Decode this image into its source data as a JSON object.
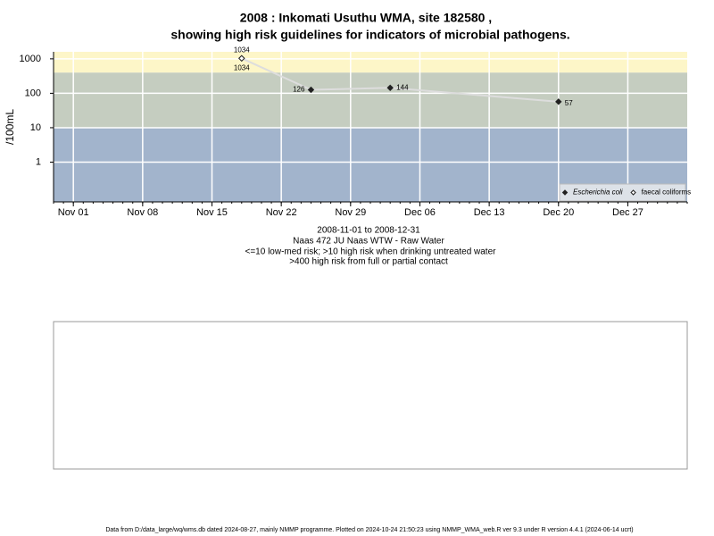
{
  "chart_data": {
    "type": "line",
    "title": [
      "2008 : Inkomati Usuthu WMA, site 182580 ,",
      "showing high risk guidelines for indicators of microbial pathogens."
    ],
    "subtitle": [
      "2008-11-01 to 2008-12-31",
      "Naas 472 JU Naas WTW - Raw Water",
      "<=10 low-med risk; >10 high risk when drinking untreated water",
      ">400 high risk from full or partial contact"
    ],
    "y_label": "/100mL",
    "log_y": true,
    "grid": true,
    "legend": "bottom-right",
    "ylim": [
      0.07,
      1600
    ],
    "yticks": [
      1,
      10,
      100,
      1000
    ],
    "xlim": [
      "2008-10-30",
      "2009-01-02"
    ],
    "xticks": [
      {
        "value": "2008-11-01",
        "label": "Nov 01"
      },
      {
        "value": "2008-11-08",
        "label": "Nov 08"
      },
      {
        "value": "2008-11-15",
        "label": "Nov 15"
      },
      {
        "value": "2008-11-22",
        "label": "Nov 22"
      },
      {
        "value": "2008-11-29",
        "label": "Nov 29"
      },
      {
        "value": "2008-12-06",
        "label": "Dec 06"
      },
      {
        "value": "2008-12-13",
        "label": "Dec 13"
      },
      {
        "value": "2008-12-20",
        "label": "Dec 20"
      },
      {
        "value": "2008-12-27",
        "label": "Dec 27"
      }
    ],
    "thresholds": [
      10,
      400
    ],
    "band_colors": [
      "#a2b4cc",
      "#c5cdc0",
      "#fdf6c8"
    ],
    "series": [
      {
        "name": "Escherichia coli",
        "color": "#222222",
        "line_color": "#dddddd",
        "marker": "filled",
        "x": [
          "2008-11-18",
          "2008-11-25",
          "2008-12-03",
          "2008-12-20"
        ],
        "values": [
          1034,
          126,
          144,
          57
        ]
      },
      {
        "name": "faecal coliforms",
        "color": "#222222",
        "marker": "open",
        "x": [
          "2008-11-18"
        ],
        "values": [
          1034
        ]
      }
    ],
    "footer": "Data from D:/data_large/wq/wms.db dated 2024-08-27, mainly NMMP programme. Plotted on 2024-10-24 21:50:23 using NMMP_WMA_web.R ver 9.3 under R version 4.4.1 (2024-06-14 ucrt)"
  }
}
